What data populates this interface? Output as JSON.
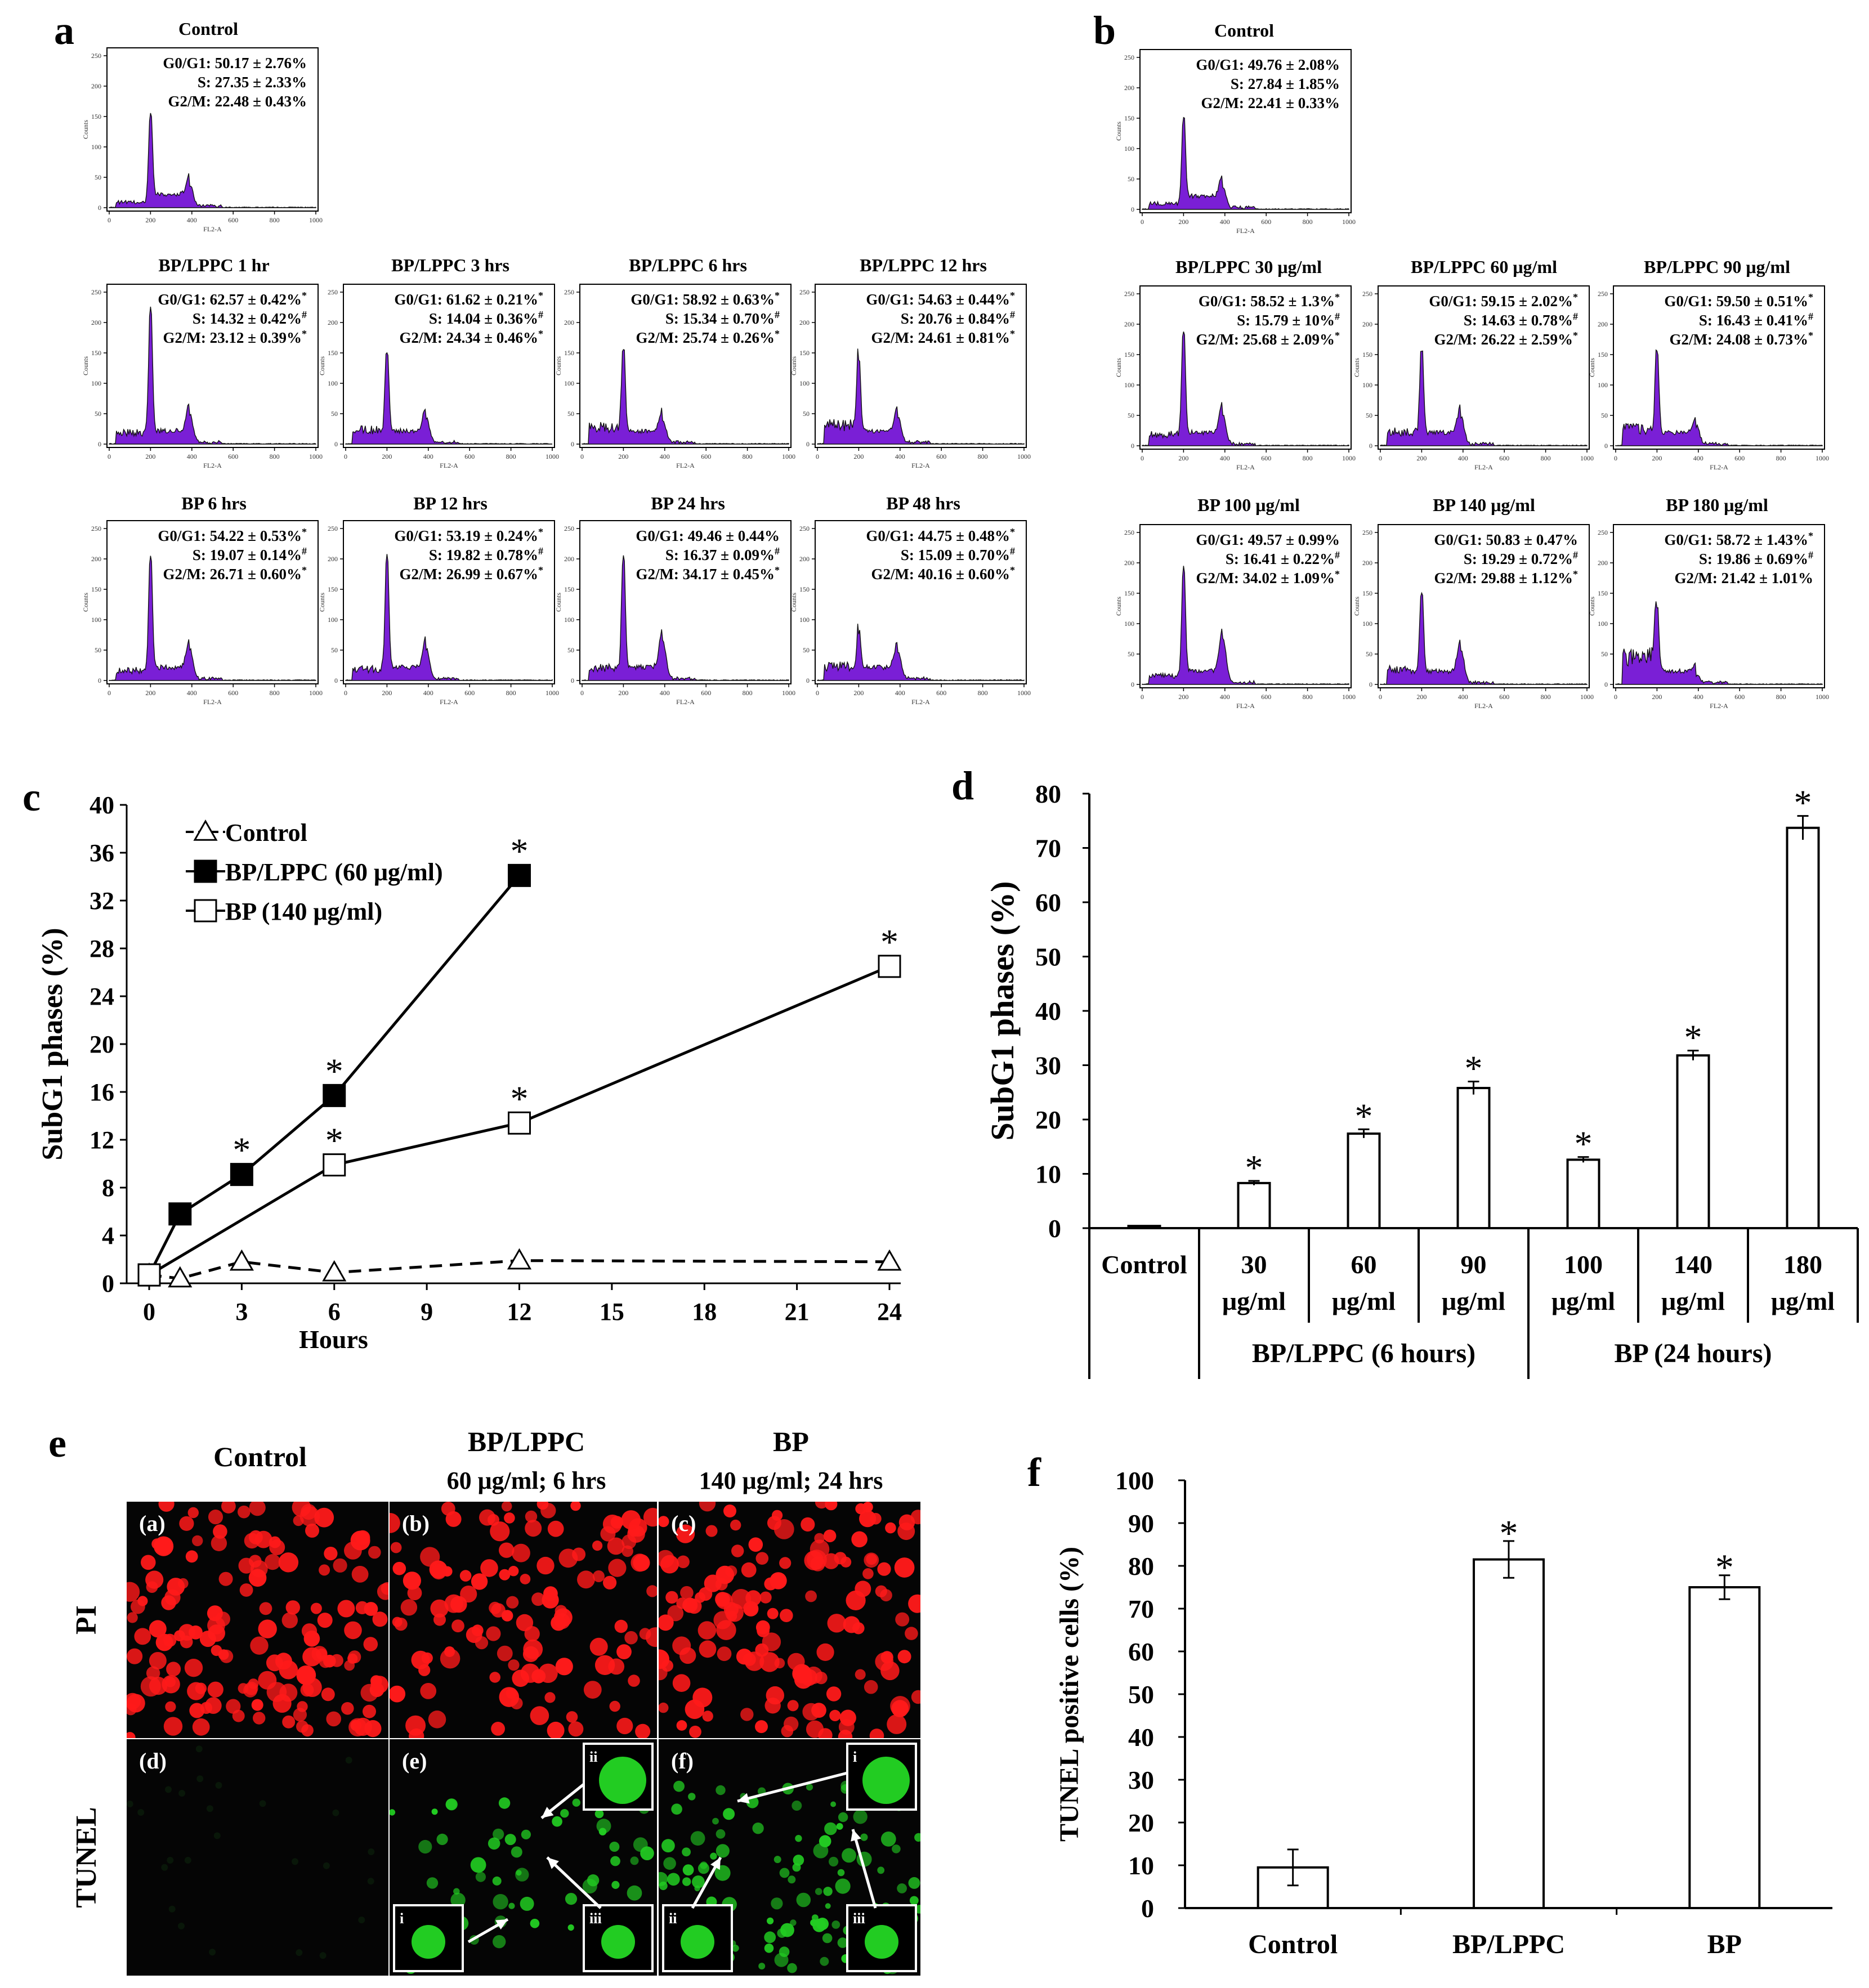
{
  "figure": {
    "panel_letters": [
      "a",
      "b",
      "c",
      "d",
      "e",
      "f"
    ],
    "histogram_axes": {
      "xlabel": "FL2-A",
      "ylabel": "Counts",
      "x_ticks": [
        "0",
        "200",
        "400",
        "600",
        "800",
        "1000"
      ],
      "y_ticks": [
        "0",
        "50",
        "100",
        "150",
        "200",
        "250"
      ]
    },
    "phase_labels": [
      "G0/G1:",
      "S:",
      "G2/M:"
    ],
    "colors": {
      "histogram_fill": "#7a1fd6",
      "pi_cells": "#ff1a1a",
      "tunel_cells": "#22cc22",
      "ink": "#000000"
    }
  },
  "chart_data": [
    {
      "type": "histogram-grid",
      "panel": "a",
      "histograms": [
        {
          "title": "Control",
          "stats": [
            "50.17 ± 2.76%",
            "27.35 ± 2.33%",
            "22.48 ± 0.43%"
          ],
          "marks": [
            "",
            "",
            ""
          ],
          "g1_peak": 0.62,
          "g2_peak": 0.14,
          "subg1": 0.04
        },
        {
          "title": "BP/LPPC 1 hr",
          "stats": [
            "62.57 ± 0.42%",
            "14.32 ± 0.42%",
            "23.12 ± 0.39%"
          ],
          "marks": [
            "*",
            "#",
            "*"
          ],
          "g1_peak": 0.9,
          "g2_peak": 0.19,
          "subg1": 0.08
        },
        {
          "title": "BP/LPPC 3 hrs",
          "stats": [
            "61.62 ± 0.21%",
            "14.04 ± 0.36%",
            "24.34 ± 0.46%"
          ],
          "marks": [
            "*",
            "#",
            "*"
          ],
          "g1_peak": 0.6,
          "g2_peak": 0.16,
          "subg1": 0.1
        },
        {
          "title": "BP/LPPC 6 hrs",
          "stats": [
            "58.92 ± 0.63%",
            "15.34 ± 0.70%",
            "25.74 ± 0.26%"
          ],
          "marks": [
            "*",
            "#",
            "*"
          ],
          "g1_peak": 0.62,
          "g2_peak": 0.15,
          "subg1": 0.12
        },
        {
          "title": "BP/LPPC 12 hrs",
          "stats": [
            "54.63 ± 0.44%",
            "20.76 ± 0.84%",
            "24.61 ± 0.81%"
          ],
          "marks": [
            "*",
            "#",
            "*"
          ],
          "g1_peak": 0.55,
          "g2_peak": 0.17,
          "subg1": 0.14
        },
        {
          "title": "BP 6 hrs",
          "stats": [
            "54.22 ± 0.53%",
            "19.07 ± 0.14%",
            "26.71 ± 0.60%"
          ],
          "marks": [
            "*",
            "#",
            "*"
          ],
          "g1_peak": 0.82,
          "g2_peak": 0.2,
          "subg1": 0.07
        },
        {
          "title": "BP 12 hrs",
          "stats": [
            "53.19 ± 0.24%",
            "19.82 ± 0.78%",
            "26.99 ± 0.67%"
          ],
          "marks": [
            "*",
            "#",
            "*"
          ],
          "g1_peak": 0.83,
          "g2_peak": 0.2,
          "subg1": 0.08
        },
        {
          "title": "BP 24 hrs",
          "stats": [
            "49.46 ± 0.44%",
            "16.37 ± 0.09%",
            "34.17 ± 0.45%"
          ],
          "marks": [
            "",
            "#",
            "*"
          ],
          "g1_peak": 0.82,
          "g2_peak": 0.26,
          "subg1": 0.09
        },
        {
          "title": "BP 48 hrs",
          "stats": [
            "44.75 ± 0.48%",
            "15.09 ± 0.70%",
            "40.16 ± 0.60%"
          ],
          "marks": [
            "*",
            "#",
            "*"
          ],
          "g1_peak": 0.3,
          "g2_peak": 0.18,
          "subg1": 0.1
        }
      ]
    },
    {
      "type": "histogram-grid",
      "panel": "b",
      "histograms": [
        {
          "title": "Control",
          "stats": [
            "49.76 ± 2.08%",
            "27.84 ± 1.85%",
            "22.41 ± 0.33%"
          ],
          "marks": [
            "",
            "",
            ""
          ],
          "g1_peak": 0.6,
          "g2_peak": 0.14,
          "subg1": 0.04
        },
        {
          "title": "BP/LPPC 30 μg/ml",
          "stats": [
            "58.52 ± 1.3%",
            "15.79 ± 10%",
            "25.68 ± 2.09%"
          ],
          "marks": [
            "*",
            "#",
            "*"
          ],
          "g1_peak": 0.75,
          "g2_peak": 0.2,
          "subg1": 0.08
        },
        {
          "title": "BP/LPPC 60 μg/ml",
          "stats": [
            "59.15 ± 2.02%",
            "14.63 ± 0.78%",
            "26.22 ± 2.59%"
          ],
          "marks": [
            "*",
            "#",
            "*"
          ],
          "g1_peak": 0.62,
          "g2_peak": 0.18,
          "subg1": 0.1
        },
        {
          "title": "BP/LPPC 90 μg/ml",
          "stats": [
            "59.50 ± 0.51%",
            "16.43 ± 0.41%",
            "24.08 ± 0.73%"
          ],
          "marks": [
            "*",
            "#",
            "*"
          ],
          "g1_peak": 0.62,
          "g2_peak": 0.12,
          "subg1": 0.12
        },
        {
          "title": "BP 100 μg/ml",
          "stats": [
            "49.57 ± 0.99%",
            "16.41 ± 0.22%",
            "34.02 ± 1.09%"
          ],
          "marks": [
            "",
            "#",
            "*"
          ],
          "g1_peak": 0.78,
          "g2_peak": 0.3,
          "subg1": 0.06
        },
        {
          "title": "BP 140 μg/ml",
          "stats": [
            "50.83 ± 0.47%",
            "19.29 ± 0.72%",
            "29.88 ± 1.12%"
          ],
          "marks": [
            "",
            "#",
            "*"
          ],
          "g1_peak": 0.6,
          "g2_peak": 0.22,
          "subg1": 0.1
        },
        {
          "title": "BP 180 μg/ml",
          "stats": [
            "58.72 ± 1.43%",
            "19.86 ± 0.69%",
            "21.42 ± 1.01%"
          ],
          "marks": [
            "*",
            "#",
            ""
          ],
          "g1_peak": 0.5,
          "g2_peak": 0.05,
          "subg1": 0.2
        }
      ]
    },
    {
      "type": "line",
      "panel": "c",
      "ylabel": "SubG1 phases (%)",
      "xlabel": "Hours",
      "xlim": [
        0,
        24
      ],
      "ylim": [
        0,
        40
      ],
      "x_ticks": [
        0,
        3,
        6,
        9,
        12,
        15,
        18,
        21,
        24
      ],
      "y_ticks": [
        0,
        4,
        8,
        12,
        16,
        20,
        24,
        28,
        32,
        36,
        40
      ],
      "series": [
        {
          "name": "Control",
          "marker": "triangle-open",
          "dashed": true,
          "x": [
            0,
            1,
            3,
            6,
            12,
            24
          ],
          "y": [
            0.7,
            0.4,
            1.8,
            0.9,
            1.9,
            1.8
          ],
          "sig": [
            false,
            false,
            false,
            false,
            false,
            false
          ]
        },
        {
          "name": "BP/LPPC (60 μg/ml)",
          "marker": "square-filled",
          "dashed": false,
          "x": [
            0,
            1,
            3,
            6,
            12
          ],
          "y": [
            0.7,
            5.8,
            9.1,
            15.7,
            34.1
          ],
          "err": [
            0,
            0,
            0,
            0,
            0.9
          ],
          "sig": [
            false,
            false,
            true,
            true,
            true
          ]
        },
        {
          "name": "BP (140 μg/ml)",
          "marker": "square-open",
          "dashed": false,
          "x": [
            0,
            6,
            12,
            24
          ],
          "y": [
            0.7,
            9.9,
            13.4,
            26.5
          ],
          "sig": [
            false,
            true,
            true,
            true
          ]
        }
      ]
    },
    {
      "type": "bar",
      "panel": "d",
      "ylabel": "SubG1 phases (%)",
      "ylim": [
        0,
        80
      ],
      "y_ticks": [
        0,
        10,
        20,
        30,
        40,
        50,
        60,
        70,
        80
      ],
      "categories": [
        [
          "Control",
          ""
        ],
        [
          "30",
          "μg/ml"
        ],
        [
          "60",
          "μg/ml"
        ],
        [
          "90",
          "μg/ml"
        ],
        [
          "100",
          "μg/ml"
        ],
        [
          "140",
          "μg/ml"
        ],
        [
          "180",
          "μg/ml"
        ]
      ],
      "values": [
        0.4,
        8.3,
        17.4,
        25.8,
        12.6,
        31.8,
        73.7
      ],
      "err": [
        0,
        0.4,
        0.8,
        1.2,
        0.5,
        0.9,
        2.2
      ],
      "sig": [
        false,
        true,
        true,
        true,
        true,
        true,
        true
      ],
      "groups": [
        {
          "label": "BP/LPPC (6 hours)",
          "from": 1,
          "to": 3
        },
        {
          "label": "BP (24 hours)",
          "from": 4,
          "to": 6
        }
      ]
    },
    {
      "type": "bar",
      "panel": "f",
      "ylabel": "TUNEL positive cells (%)",
      "ylim": [
        0,
        100
      ],
      "y_ticks": [
        0,
        10,
        20,
        30,
        40,
        50,
        60,
        70,
        80,
        90,
        100
      ],
      "categories": [
        "Control",
        "BP/LPPC",
        "BP"
      ],
      "values": [
        9.5,
        81.5,
        75.0
      ],
      "err": [
        4.2,
        4.3,
        2.8
      ],
      "sig": [
        false,
        true,
        true
      ]
    }
  ],
  "micrographs": {
    "panel": "e",
    "columns": [
      {
        "title": "Control",
        "subtitle": ""
      },
      {
        "title": "BP/LPPC",
        "subtitle": "60 μg/ml; 6 hrs"
      },
      {
        "title": "BP",
        "subtitle": "140 μg/ml; 24 hrs"
      }
    ],
    "rows": [
      {
        "label": "PI"
      },
      {
        "label": "TUNEL"
      }
    ],
    "tiles": [
      {
        "label": "(a)",
        "kind": "pi",
        "density": 150
      },
      {
        "label": "(b)",
        "kind": "pi",
        "density": 120
      },
      {
        "label": "(c)",
        "kind": "pi",
        "density": 140
      },
      {
        "label": "(d)",
        "kind": "tunel-dim",
        "density": 0
      },
      {
        "label": "(e)",
        "kind": "tunel",
        "density": 60,
        "insets": [
          "ii",
          "i",
          "iii"
        ]
      },
      {
        "label": "(f)",
        "kind": "tunel",
        "density": 120,
        "insets": [
          "i",
          "ii",
          "iii"
        ]
      }
    ]
  }
}
